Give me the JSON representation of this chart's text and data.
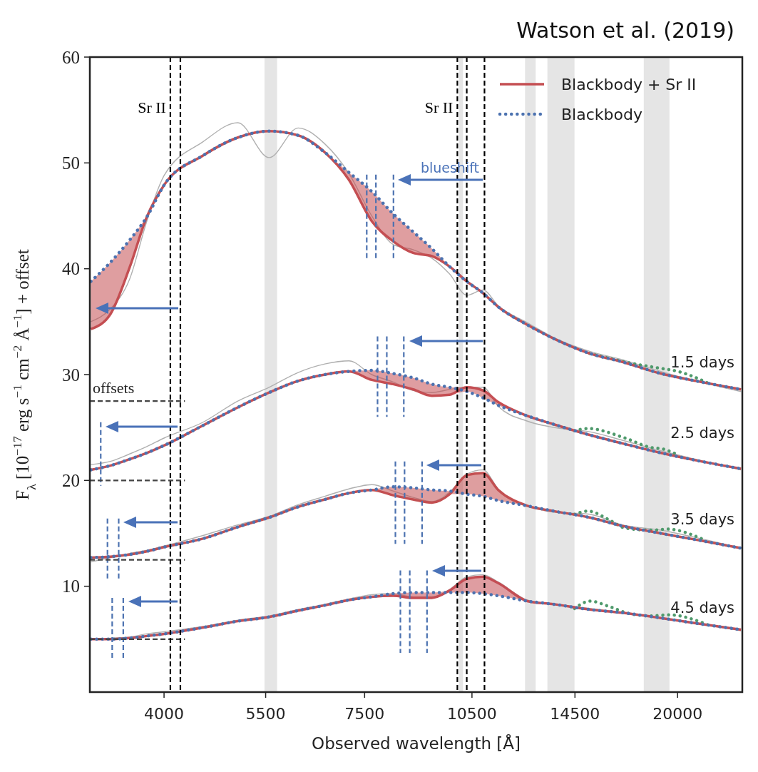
{
  "chart_data": {
    "type": "line",
    "xlabel": "Observed wavelength [Å]",
    "ylabel": "F$_{λ}$ [10$^{−17}$ erg s$^{−1}$ cm$^{−2}$ Å$^{−1}$] + offset",
    "log": "x",
    "xlim": [
      3170,
      24500
    ],
    "ylim": [
      0,
      60
    ],
    "xticks": [
      4000,
      5500,
      7500,
      10500,
      14500,
      20000
    ],
    "yticks": [
      10,
      20,
      30,
      40,
      50,
      60
    ],
    "legend": "top right",
    "x": [
      3180,
      3380,
      3590,
      3790,
      4000,
      4520,
      5040,
      5560,
      6090,
      6620,
      7140,
      7670,
      8200,
      8730,
      9260,
      9790,
      10330,
      10870,
      11400,
      12490,
      13570,
      15180,
      16820,
      18980,
      21180,
      24400
    ],
    "annotations": [
      "Watson et al. (2019)",
      "offsets",
      "blueshift",
      "1.5 days",
      "2.5 days",
      "3.5 days",
      "4.5 days"
    ],
    "ref_lines": [
      {
        "axis": "x",
        "value": 4080,
        "label": "Sr II",
        "color": "#000000",
        "line_style": "dashed"
      },
      {
        "axis": "x",
        "value": 4210,
        "color": "#000000",
        "line_style": "dashed"
      },
      {
        "axis": "x",
        "value": 10030,
        "label": "Sr II",
        "color": "#000000",
        "line_style": "dashed"
      },
      {
        "axis": "x",
        "value": 10330,
        "color": "#000000",
        "line_style": "dashed"
      },
      {
        "axis": "x",
        "value": 10920,
        "color": "#000000",
        "line_style": "dashed"
      }
    ],
    "bands": [
      {
        "axis": "x",
        "from": 5480,
        "to": 5700,
        "color": "#e5e5e5"
      },
      {
        "axis": "x",
        "from": 10080,
        "to": 10210,
        "color": "#e5e5e5"
      },
      {
        "axis": "x",
        "from": 12400,
        "to": 12820,
        "color": "#e5e5e5"
      },
      {
        "axis": "x",
        "from": 13300,
        "to": 14480,
        "color": "#e5e5e5"
      },
      {
        "axis": "x",
        "from": 17990,
        "to": 19500,
        "color": "#e5e5e5"
      }
    ],
    "series": [
      {
        "color": "#b0b0b0",
        "values": [
          35.0,
          36.2,
          39.0,
          44.5,
          48.8,
          52.0,
          53.8,
          50.5,
          53.3,
          51.8,
          49.0,
          45.0,
          42.3,
          41.8,
          41.0,
          39.5,
          37.5,
          38.0,
          36.5,
          34.9,
          33.5,
          32.2,
          31.4,
          30.3,
          29.4,
          28.4
        ]
      },
      {
        "color": "#b0b0b0",
        "values": [
          21.5,
          21.8,
          22.5,
          23.2,
          24.0,
          25.5,
          27.5,
          28.8,
          30.2,
          31.0,
          31.3,
          30.0,
          29.3,
          28.5,
          28.3,
          28.6,
          28.8,
          28.8,
          27.0,
          25.6,
          25.0,
          24.6,
          23.8,
          22.8,
          22.0,
          21.0
        ]
      },
      {
        "color": "#b0b0b0",
        "values": [
          12.3,
          12.7,
          13.1,
          13.4,
          13.8,
          14.8,
          15.8,
          16.6,
          17.7,
          18.5,
          19.2,
          19.6,
          19.0,
          18.4,
          18.0,
          18.9,
          20.6,
          21.0,
          19.2,
          17.6,
          17.0,
          16.8,
          15.8,
          15.3,
          14.6,
          13.6
        ]
      },
      {
        "color": "#b0b0b0",
        "values": [
          5.0,
          5.1,
          5.2,
          5.5,
          5.7,
          6.2,
          6.8,
          7.2,
          7.8,
          8.3,
          8.8,
          9.2,
          9.3,
          9.0,
          9.0,
          9.7,
          10.9,
          11.1,
          10.4,
          8.7,
          8.3,
          7.9,
          7.5,
          7.0,
          6.5,
          5.8
        ]
      },
      {
        "color": "#4f9a6c",
        "line_style": "dotted",
        "x": [
          15180,
          17510,
          18940,
          20030,
          22150
        ],
        "values": [
          32.0,
          31.0,
          30.6,
          30.3,
          29.1
        ]
      },
      {
        "color": "#4f9a6c",
        "line_style": "dotted",
        "x": [
          14480,
          15110,
          16970,
          18440,
          19020,
          20030
        ],
        "values": [
          24.7,
          24.9,
          24.0,
          23.1,
          23.0,
          22.4
        ]
      },
      {
        "color": "#4f9a6c",
        "line_style": "dotted",
        "x": [
          14480,
          15110,
          16120,
          16970,
          18440,
          19360,
          21560
        ],
        "values": [
          16.8,
          17.1,
          16.3,
          15.5,
          15.3,
          15.4,
          14.5
        ]
      },
      {
        "color": "#4f9a6c",
        "line_style": "dotted",
        "x": [
          14480,
          15210,
          16120,
          17240,
          18440,
          19450,
          22100
        ],
        "values": [
          7.9,
          8.6,
          8.1,
          7.4,
          7.2,
          7.3,
          6.3
        ]
      },
      {
        "name": "Blackbody + Sr II",
        "color": "#c44e52",
        "values": [
          34.3,
          35.7,
          40.1,
          44.9,
          47.9,
          50.7,
          52.4,
          53.0,
          52.6,
          51.0,
          48.4,
          44.5,
          42.6,
          41.5,
          41.2,
          40.2,
          38.8,
          37.7,
          36.4,
          34.7,
          33.4,
          32.0,
          31.2,
          30.1,
          29.4,
          28.6
        ],
        "lower": [
          34.3,
          35.7,
          40.1,
          44.9,
          null,
          null,
          null,
          null,
          null,
          51.0,
          48.4,
          44.5,
          42.6,
          41.5,
          41.2,
          40.2,
          null,
          null,
          null,
          null,
          null,
          null,
          null,
          null,
          null,
          null
        ],
        "upper": [
          38.8,
          40.6,
          42.7,
          44.9,
          null,
          null,
          null,
          null,
          null,
          51.0,
          49.1,
          47.3,
          45.2,
          43.5,
          41.9,
          40.2,
          null,
          null,
          null,
          null,
          null,
          null,
          null,
          null,
          null,
          null
        ]
      },
      {
        "color": "#c54e53",
        "values": [
          21.0,
          21.4,
          22.0,
          22.6,
          23.3,
          25.2,
          26.9,
          28.3,
          29.4,
          30.0,
          30.3,
          29.5,
          29.1,
          28.6,
          28.0,
          28.1,
          28.8,
          28.5,
          27.4,
          26.1,
          25.3,
          24.3,
          23.5,
          22.6,
          21.9,
          21.1
        ],
        "lower": [
          null,
          null,
          null,
          null,
          null,
          null,
          null,
          null,
          null,
          null,
          30.3,
          29.5,
          29.1,
          28.6,
          28.0,
          28.1,
          28.4,
          27.8,
          27.1,
          26.1,
          null,
          null,
          null,
          null,
          null,
          null
        ],
        "upper": [
          null,
          null,
          null,
          null,
          null,
          null,
          null,
          null,
          null,
          null,
          30.3,
          30.4,
          30.1,
          29.7,
          29.1,
          28.8,
          28.8,
          28.5,
          27.4,
          26.1,
          null,
          null,
          null,
          null,
          null,
          null
        ]
      },
      {
        "color": "#c34f51",
        "values": [
          12.7,
          12.8,
          13.0,
          13.3,
          13.7,
          14.5,
          15.6,
          16.5,
          17.5,
          18.2,
          18.8,
          19.1,
          18.6,
          18.2,
          17.9,
          18.7,
          20.5,
          20.7,
          19.1,
          17.6,
          17.1,
          16.5,
          15.7,
          15.0,
          14.4,
          13.6
        ],
        "lower": [
          null,
          null,
          null,
          null,
          null,
          null,
          null,
          null,
          null,
          null,
          null,
          19.1,
          18.6,
          18.2,
          17.9,
          18.7,
          18.7,
          18.5,
          18.1,
          17.6,
          null,
          null,
          null,
          null,
          null,
          null
        ],
        "upper": [
          null,
          null,
          null,
          null,
          null,
          null,
          null,
          null,
          null,
          null,
          null,
          19.1,
          19.4,
          19.3,
          19.1,
          19.0,
          20.5,
          20.7,
          19.1,
          17.6,
          null,
          null,
          null,
          null,
          null,
          null
        ]
      },
      {
        "color": "#c44d54",
        "values": [
          5.0,
          5.0,
          5.1,
          5.3,
          5.5,
          6.1,
          6.7,
          7.1,
          7.7,
          8.2,
          8.7,
          9.0,
          9.1,
          8.9,
          8.9,
          9.6,
          10.7,
          10.9,
          10.3,
          8.6,
          8.3,
          7.8,
          7.5,
          7.0,
          6.5,
          5.9
        ],
        "lower": [
          null,
          null,
          null,
          null,
          null,
          null,
          null,
          null,
          null,
          null,
          null,
          9.0,
          9.1,
          8.9,
          8.9,
          9.4,
          9.4,
          9.3,
          9.1,
          8.6,
          null,
          null,
          null,
          null,
          null,
          null
        ],
        "upper": [
          null,
          null,
          null,
          null,
          null,
          null,
          null,
          null,
          null,
          null,
          null,
          9.0,
          9.3,
          9.4,
          9.4,
          9.6,
          10.7,
          10.9,
          10.3,
          8.6,
          null,
          null,
          null,
          null,
          null,
          null
        ]
      },
      {
        "name": "Blackbody",
        "color": "#4c72b0",
        "line_style": "dotted",
        "values": [
          38.8,
          40.6,
          42.7,
          44.9,
          47.9,
          50.7,
          52.4,
          53.0,
          52.6,
          51.0,
          49.1,
          47.3,
          45.2,
          43.5,
          41.9,
          40.2,
          38.8,
          37.7,
          36.4,
          34.7,
          33.4,
          32.0,
          31.2,
          30.1,
          29.4,
          28.6
        ]
      },
      {
        "color": "#4c72b0",
        "line_style": "dotted",
        "values": [
          21.0,
          21.4,
          22.0,
          22.6,
          23.3,
          25.2,
          26.9,
          28.3,
          29.4,
          30.0,
          30.3,
          30.4,
          30.1,
          29.7,
          29.1,
          28.8,
          28.4,
          27.8,
          27.1,
          26.1,
          25.3,
          24.3,
          23.5,
          22.6,
          21.9,
          21.1
        ]
      },
      {
        "color": "#4c72b0",
        "line_style": "dotted",
        "values": [
          12.7,
          12.8,
          13.0,
          13.3,
          13.7,
          14.5,
          15.6,
          16.5,
          17.5,
          18.2,
          18.8,
          19.1,
          19.4,
          19.3,
          19.1,
          19.0,
          18.7,
          18.5,
          18.1,
          17.6,
          17.1,
          16.5,
          15.7,
          15.0,
          14.4,
          13.6
        ]
      },
      {
        "color": "#4c72b0",
        "line_style": "dotted",
        "values": [
          5.0,
          5.0,
          5.1,
          5.3,
          5.5,
          6.1,
          6.7,
          7.1,
          7.7,
          8.2,
          8.7,
          9.0,
          9.3,
          9.4,
          9.4,
          9.4,
          9.4,
          9.3,
          9.1,
          8.6,
          8.3,
          7.8,
          7.5,
          7.0,
          6.5,
          5.9
        ]
      },
      {
        "color": "#4c72b0",
        "line_style": "dashed",
        "x": [
          7550,
          7550
        ],
        "values": [
          48.9,
          41.0
        ]
      },
      {
        "color": "#4c72b0",
        "line_style": "dashed",
        "x": [
          7770,
          7770
        ],
        "values": [
          48.9,
          41.0
        ]
      },
      {
        "color": "#4c72b0",
        "line_style": "dashed",
        "x": [
          8210,
          8210
        ],
        "values": [
          48.9,
          41.0
        ]
      },
      {
        "color": "#4c72b0",
        "line_style": "dashed",
        "x": [
          7810,
          7810
        ],
        "values": [
          33.6,
          26.0
        ]
      },
      {
        "color": "#4c72b0",
        "line_style": "dashed",
        "x": [
          8040,
          8040
        ],
        "values": [
          33.6,
          26.0
        ]
      },
      {
        "color": "#4c72b0",
        "line_style": "dashed",
        "x": [
          8480,
          8480
        ],
        "values": [
          33.6,
          26.0
        ]
      },
      {
        "color": "#4c72b0",
        "line_style": "dashed",
        "x": [
          3280,
          3280
        ],
        "values": [
          25.5,
          19.5
        ]
      },
      {
        "color": "#4c72b0",
        "line_style": "dashed",
        "x": [
          8260,
          8260
        ],
        "values": [
          21.8,
          14.0
        ]
      },
      {
        "color": "#4c72b0",
        "line_style": "dashed",
        "x": [
          8500,
          8500
        ],
        "values": [
          21.8,
          14.0
        ]
      },
      {
        "color": "#4c72b0",
        "line_style": "dashed",
        "x": [
          8980,
          8980
        ],
        "values": [
          21.8,
          14.0
        ]
      },
      {
        "color": "#4c72b0",
        "line_style": "dashed",
        "x": [
          3350,
          3350
        ],
        "values": [
          16.4,
          10.5
        ]
      },
      {
        "color": "#4c72b0",
        "line_style": "dashed",
        "x": [
          3470,
          3470
        ],
        "values": [
          16.4,
          10.5
        ]
      },
      {
        "color": "#4c72b0",
        "line_style": "dashed",
        "x": [
          8390,
          8390
        ],
        "values": [
          11.5,
          3.7
        ]
      },
      {
        "color": "#4c72b0",
        "line_style": "dashed",
        "x": [
          8640,
          8640
        ],
        "values": [
          11.5,
          3.7
        ]
      },
      {
        "color": "#4c72b0",
        "line_style": "dashed",
        "x": [
          9120,
          9120
        ],
        "values": [
          11.5,
          3.7
        ]
      },
      {
        "color": "#4c72b0",
        "line_style": "dashed",
        "x": [
          3400,
          3400
        ],
        "values": [
          8.9,
          3.0
        ]
      },
      {
        "color": "#4c72b0",
        "line_style": "dashed",
        "x": [
          3520,
          3520
        ],
        "values": [
          8.9,
          3.0
        ]
      },
      {
        "color": "#444444",
        "line_style": "dashed",
        "x": [
          3170,
          4270
        ],
        "values": [
          27.5,
          27.5
        ]
      },
      {
        "color": "#444444",
        "line_style": "dashed",
        "x": [
          3170,
          4270
        ],
        "values": [
          20,
          20
        ]
      },
      {
        "color": "#444444",
        "line_style": "dashed",
        "x": [
          3170,
          4270
        ],
        "values": [
          12.5,
          12.5
        ]
      },
      {
        "color": "#444444",
        "line_style": "dashed",
        "x": [
          3170,
          4270
        ],
        "values": [
          5,
          5
        ]
      }
    ]
  }
}
